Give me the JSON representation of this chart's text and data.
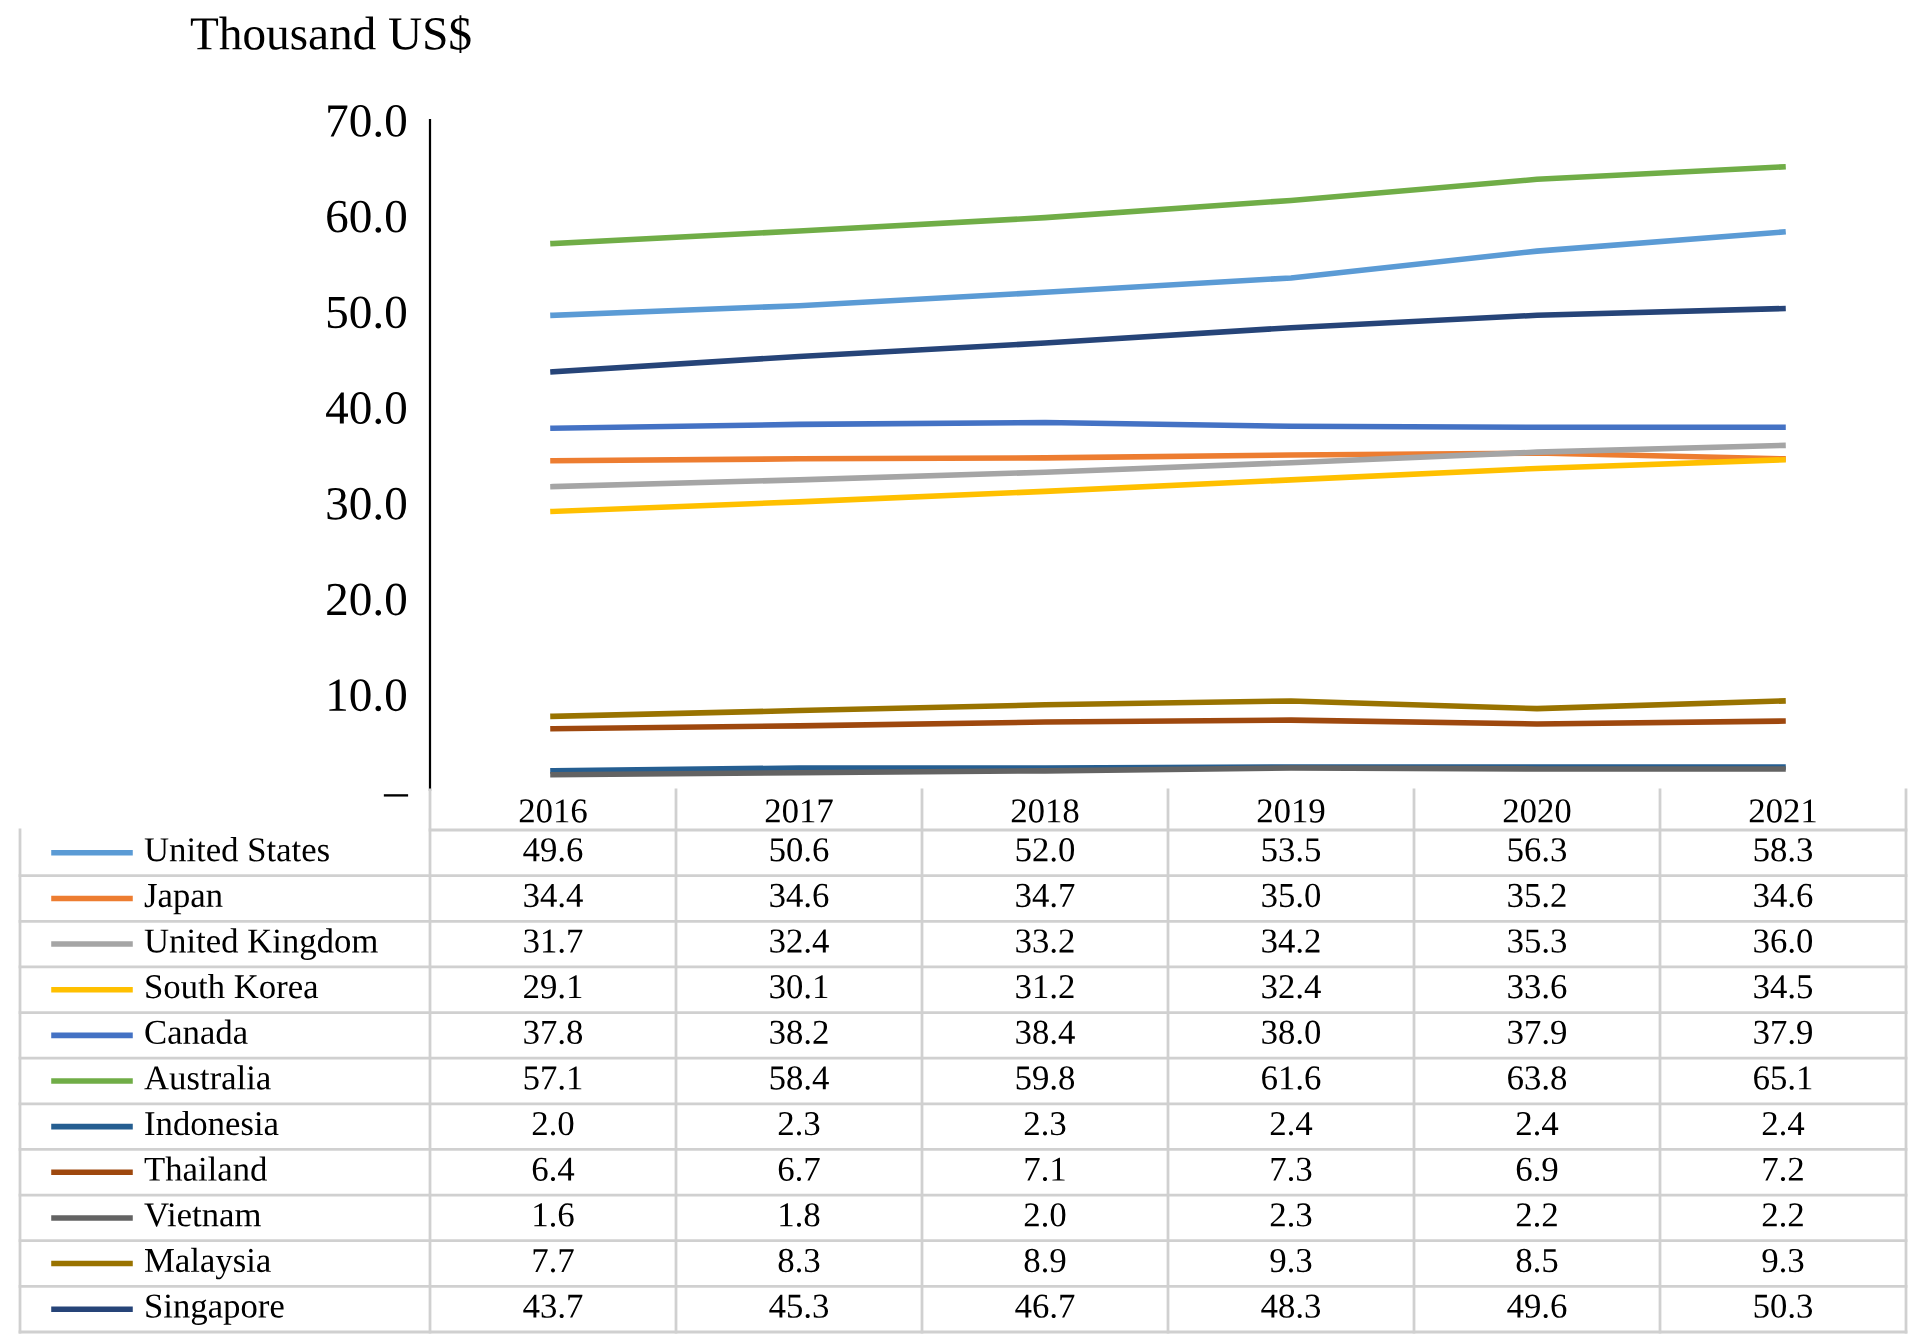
{
  "chart_data": {
    "type": "line",
    "ylabel": "Thousand US$",
    "categories": [
      "2016",
      "2017",
      "2018",
      "2019",
      "2020",
      "2021"
    ],
    "ylim": [
      0,
      70
    ],
    "yticks": [
      {
        "value": 0,
        "label": "–"
      },
      {
        "value": 10,
        "label": "10.0"
      },
      {
        "value": 20,
        "label": "20.0"
      },
      {
        "value": 30,
        "label": "30.0"
      },
      {
        "value": 40,
        "label": "40.0"
      },
      {
        "value": 50,
        "label": "50.0"
      },
      {
        "value": 60,
        "label": "60.0"
      },
      {
        "value": 70,
        "label": "70.0"
      }
    ],
    "grid": false,
    "legend": "bottom",
    "marker": "none",
    "line_style": "solid",
    "series": [
      {
        "name": "United States",
        "color": "#5b9bd5",
        "values": [
          49.6,
          50.6,
          52.0,
          53.5,
          56.3,
          58.3
        ],
        "value_labels": [
          "49.6",
          "50.6",
          "52.0",
          "53.5",
          "56.3",
          "58.3"
        ]
      },
      {
        "name": "Japan",
        "color": "#ed7d31",
        "values": [
          34.4,
          34.6,
          34.7,
          35.0,
          35.2,
          34.6
        ],
        "value_labels": [
          "34.4",
          "34.6",
          "34.7",
          "35.0",
          "35.2",
          "34.6"
        ]
      },
      {
        "name": "United Kingdom",
        "color": "#a5a5a5",
        "values": [
          31.7,
          32.4,
          33.2,
          34.2,
          35.3,
          36.0
        ],
        "value_labels": [
          "31.7",
          "32.4",
          "33.2",
          "34.2",
          "35.3",
          "36.0"
        ]
      },
      {
        "name": "South Korea",
        "color": "#ffc000",
        "values": [
          29.1,
          30.1,
          31.2,
          32.4,
          33.6,
          34.5
        ],
        "value_labels": [
          "29.1",
          "30.1",
          "31.2",
          "32.4",
          "33.6",
          "34.5"
        ]
      },
      {
        "name": "Canada",
        "color": "#4472c4",
        "values": [
          37.8,
          38.2,
          38.4,
          38.0,
          37.9,
          37.9
        ],
        "value_labels": [
          "37.8",
          "38.2",
          "38.4",
          "38.0",
          "37.9",
          "37.9"
        ]
      },
      {
        "name": "Australia",
        "color": "#70ad47",
        "values": [
          57.1,
          58.4,
          59.8,
          61.6,
          63.8,
          65.1
        ],
        "value_labels": [
          "57.1",
          "58.4",
          "59.8",
          "61.6",
          "63.8",
          "65.1"
        ]
      },
      {
        "name": "Indonesia",
        "color": "#255e91",
        "values": [
          2.0,
          2.3,
          2.3,
          2.4,
          2.4,
          2.4
        ],
        "value_labels": [
          "2.0",
          "2.3",
          "2.3",
          "2.4",
          "2.4",
          "2.4"
        ]
      },
      {
        "name": "Thailand",
        "color": "#9e480e",
        "values": [
          6.4,
          6.7,
          7.1,
          7.3,
          6.9,
          7.2
        ],
        "value_labels": [
          "6.4",
          "6.7",
          "7.1",
          "7.3",
          "6.9",
          "7.2"
        ]
      },
      {
        "name": "Vietnam",
        "color": "#636363",
        "values": [
          1.6,
          1.8,
          2.0,
          2.3,
          2.2,
          2.2
        ],
        "value_labels": [
          "1.6",
          "1.8",
          "2.0",
          "2.3",
          "2.2",
          "2.2"
        ]
      },
      {
        "name": "Malaysia",
        "color": "#997300",
        "values": [
          7.7,
          8.3,
          8.9,
          9.3,
          8.5,
          9.3
        ],
        "value_labels": [
          "7.7",
          "8.3",
          "8.9",
          "9.3",
          "8.5",
          "9.3"
        ]
      },
      {
        "name": "Singapore",
        "color": "#264478",
        "values": [
          43.7,
          45.3,
          46.7,
          48.3,
          49.6,
          50.3
        ],
        "value_labels": [
          "43.7",
          "45.3",
          "46.7",
          "48.3",
          "49.6",
          "50.3"
        ]
      }
    ]
  }
}
